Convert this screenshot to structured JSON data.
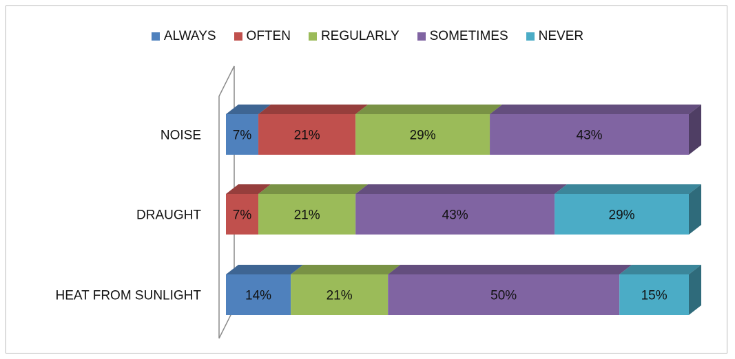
{
  "chart_data": {
    "type": "bar",
    "orientation": "horizontal",
    "stacked": "percent",
    "style": "3d",
    "categories": [
      "NOISE",
      "DRAUGHT",
      "HEAT FROM SUNLIGHT"
    ],
    "series": [
      {
        "name": "ALWAYS",
        "color": "#4f81bd",
        "values": [
          7,
          0,
          14
        ]
      },
      {
        "name": "OFTEN",
        "color": "#c0504d",
        "values": [
          21,
          7,
          0
        ]
      },
      {
        "name": "REGULARLY",
        "color": "#9bbb59",
        "values": [
          29,
          21,
          21
        ]
      },
      {
        "name": "SOMETIMES",
        "color": "#8064a2",
        "values": [
          43,
          43,
          50
        ]
      },
      {
        "name": "NEVER",
        "color": "#4bacc6",
        "values": [
          0,
          29,
          15
        ]
      }
    ],
    "value_format": "{v}%",
    "xlim": [
      0,
      100
    ],
    "grid": false,
    "legend_position": "top"
  }
}
